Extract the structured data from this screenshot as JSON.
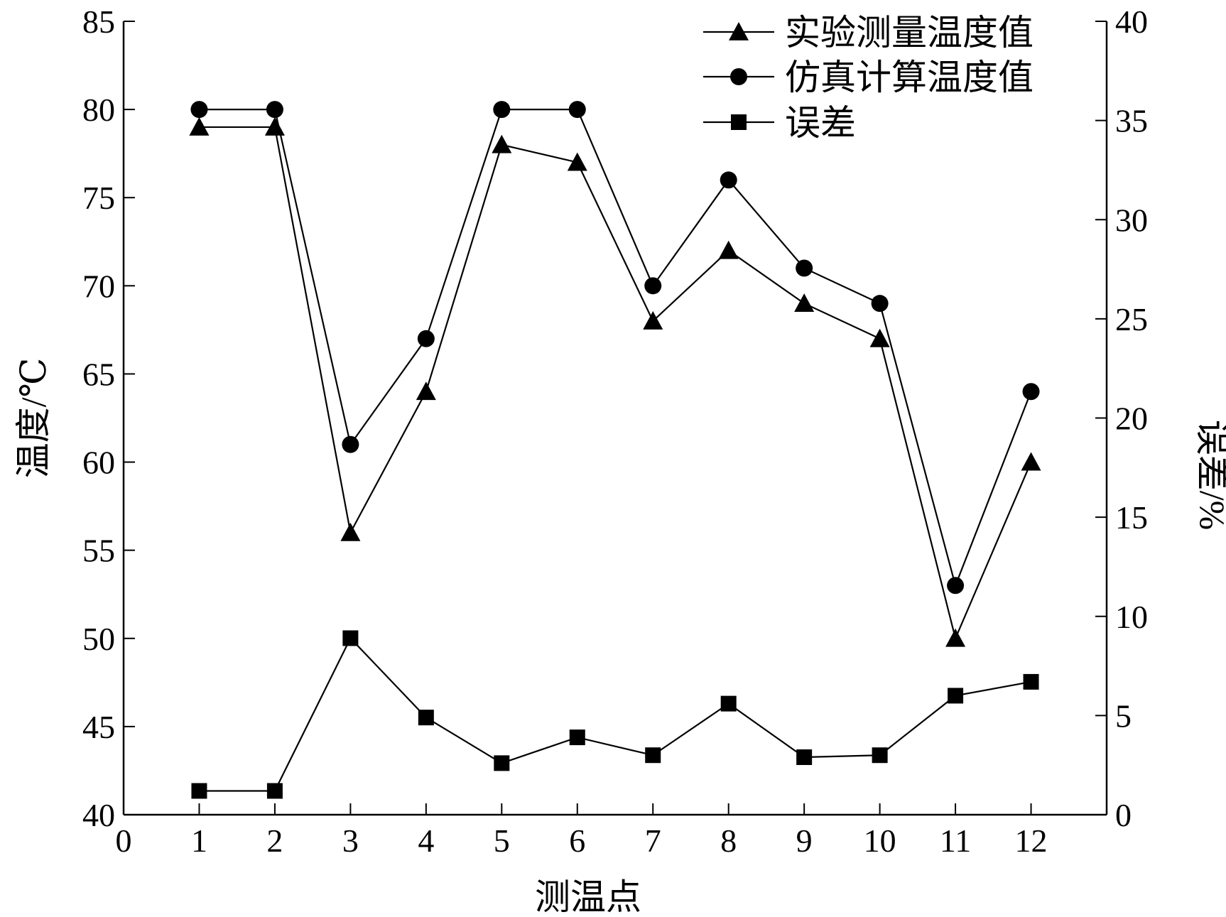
{
  "chart_data": {
    "type": "line",
    "xlabel": "测温点",
    "ylabel": "温度/℃",
    "y2label": "误差/%",
    "xlim": [
      0,
      13
    ],
    "ylim": [
      40,
      85
    ],
    "y2lim": [
      0,
      40
    ],
    "x_ticks": [
      0,
      1,
      2,
      3,
      4,
      5,
      6,
      7,
      8,
      9,
      10,
      11,
      12
    ],
    "y_ticks": [
      40,
      45,
      50,
      55,
      60,
      65,
      70,
      75,
      80,
      85
    ],
    "y2_ticks": [
      0,
      5,
      10,
      15,
      20,
      25,
      30,
      35,
      40
    ],
    "grid": false,
    "legend_position": "top-right",
    "x": [
      1,
      2,
      3,
      4,
      5,
      6,
      7,
      8,
      9,
      10,
      11,
      12
    ],
    "series": [
      {
        "name": "实验测量温度值",
        "axis": "left",
        "marker": "triangle",
        "values": [
          79,
          79,
          56,
          64,
          78,
          77,
          68,
          72,
          69,
          67,
          50,
          60
        ]
      },
      {
        "name": "仿真计算温度值",
        "axis": "left",
        "marker": "circle",
        "values": [
          80,
          80,
          61,
          67,
          80,
          80,
          70,
          76,
          71,
          69,
          53,
          64
        ]
      },
      {
        "name": "误差",
        "axis": "right",
        "marker": "square",
        "values": [
          1.2,
          1.2,
          8.9,
          4.9,
          2.6,
          3.9,
          3.0,
          5.6,
          2.9,
          3.0,
          6.0,
          6.7
        ]
      }
    ]
  }
}
